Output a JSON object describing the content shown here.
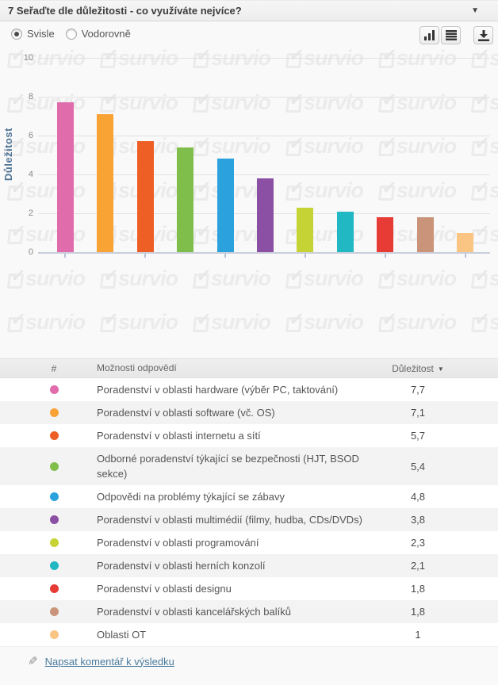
{
  "header": {
    "title": "7 Seřaďte dle důležitosti - co využíváte nejvíce?"
  },
  "controls": {
    "orientation_options": [
      {
        "label": "Svisle",
        "selected": true
      },
      {
        "label": "Vodorovně",
        "selected": false
      }
    ],
    "buttons": [
      {
        "name": "chart-view"
      },
      {
        "name": "table-view"
      },
      {
        "name": "download"
      }
    ]
  },
  "chart_data": {
    "type": "bar",
    "title": "",
    "xlabel": "",
    "ylabel": "Důležitost",
    "ylim": [
      0,
      10
    ],
    "yticks": [
      0,
      2,
      4,
      6,
      8,
      10
    ],
    "grid": true,
    "legend": false,
    "watermark": "survio",
    "categories": [
      "Poradenství v oblasti hardware (výběr PC, taktování)",
      "Poradenství v oblasti software (vč. OS)",
      "Poradenství v oblasti internetu a sítí",
      "Odborné poradenství týkající se bezpečnosti (HJT, BSOD sekce)",
      "Odpovědi na problémy týkající se zábavy",
      "Poradenství v oblasti multimédií (filmy, hudba, CDs/DVDs)",
      "Poradenství v oblasti programování",
      "Poradenství v oblasti herních konzolí",
      "Poradenství v oblasti designu",
      "Poradenství v oblasti kancelářských balíků",
      "Oblasti OT"
    ],
    "values": [
      7.7,
      7.1,
      5.7,
      5.4,
      4.8,
      3.8,
      2.3,
      2.1,
      1.8,
      1.8,
      1
    ],
    "colors": [
      "#E06CAC",
      "#F9A335",
      "#EE5F25",
      "#80BE4C",
      "#2BA2DE",
      "#8B4FA3",
      "#C6D335",
      "#22B8C3",
      "#E73B35",
      "#C99479",
      "#FAC483"
    ]
  },
  "table": {
    "columns": [
      "#",
      "Možnosti odpovědí",
      "Důležitost"
    ],
    "sort_indicator": "▼",
    "rows": [
      {
        "color": "#E06CAC",
        "label": "Poradenství v oblasti hardware (výběr PC, taktování)",
        "value": "7,7"
      },
      {
        "color": "#F9A335",
        "label": "Poradenství v oblasti software (vč. OS)",
        "value": "7,1"
      },
      {
        "color": "#EE5F25",
        "label": "Poradenství v oblasti internetu a sítí",
        "value": "5,7"
      },
      {
        "color": "#80BE4C",
        "label": "Odborné poradenství týkající se bezpečnosti (HJT, BSOD sekce)",
        "value": "5,4"
      },
      {
        "color": "#2BA2DE",
        "label": "Odpovědi na problémy týkající se zábavy",
        "value": "4,8"
      },
      {
        "color": "#8B4FA3",
        "label": "Poradenství v oblasti multimédií (filmy, hudba, CDs/DVDs)",
        "value": "3,8"
      },
      {
        "color": "#C6D335",
        "label": "Poradenství v oblasti programování",
        "value": "2,3"
      },
      {
        "color": "#22B8C3",
        "label": "Poradenství v oblasti herních konzolí",
        "value": "2,1"
      },
      {
        "color": "#E73B35",
        "label": "Poradenství v oblasti designu",
        "value": "1,8"
      },
      {
        "color": "#C99479",
        "label": "Poradenství v oblasti kancelářských balíků",
        "value": "1,8"
      },
      {
        "color": "#FAC483",
        "label": "Oblasti OT",
        "value": "1"
      }
    ]
  },
  "footer": {
    "comment_link": "Napsat komentář k výsledku"
  }
}
